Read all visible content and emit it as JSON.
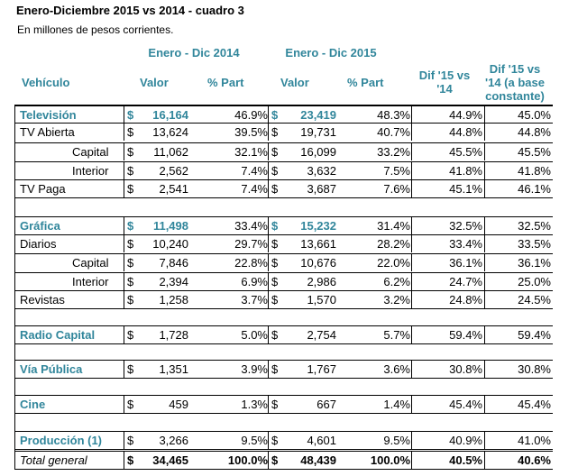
{
  "title": "Enero-Diciembre 2015 vs 2014 - cuadro 3",
  "subtitle": "En millones de pesos corrientes.",
  "header": {
    "group_2014": "Enero - Dic 2014",
    "group_2015": "Enero - Dic 2015",
    "vehiculo": "Vehículo",
    "valor": "Valor",
    "part": "% Part",
    "dif_line1": "Dif '15 vs",
    "dif_line2": "'14",
    "dif_cte_line1": "Dif '15 vs",
    "dif_cte_line2": "'14 (a base",
    "dif_cte_line3": "constante)"
  },
  "currency": "$",
  "rows": [
    {
      "label": "Televisión",
      "v14": "16,164",
      "p14": "46.9%",
      "v15": "23,419",
      "p15": "48.3%",
      "dif": "44.9%",
      "difc": "45.0%"
    },
    {
      "label": "TV Abierta",
      "v14": "13,624",
      "p14": "39.5%",
      "v15": "19,731",
      "p15": "40.7%",
      "dif": "44.8%",
      "difc": "44.8%"
    },
    {
      "label": "Capital",
      "v14": "11,062",
      "p14": "32.1%",
      "v15": "16,099",
      "p15": "33.2%",
      "dif": "45.5%",
      "difc": "45.5%"
    },
    {
      "label": "Interior",
      "v14": "2,562",
      "p14": "7.4%",
      "v15": "3,632",
      "p15": "7.5%",
      "dif": "41.8%",
      "difc": "41.8%"
    },
    {
      "label": "TV Paga",
      "v14": "2,541",
      "p14": "7.4%",
      "v15": "3,687",
      "p15": "7.6%",
      "dif": "45.1%",
      "difc": "46.1%"
    },
    {
      "label": "Gráfica",
      "v14": "11,498",
      "p14": "33.4%",
      "v15": "15,232",
      "p15": "31.4%",
      "dif": "32.5%",
      "difc": "32.5%"
    },
    {
      "label": "Diarios",
      "v14": "10,240",
      "p14": "29.7%",
      "v15": "13,661",
      "p15": "28.2%",
      "dif": "33.4%",
      "difc": "33.5%"
    },
    {
      "label": "Capital",
      "v14": "7,846",
      "p14": "22.8%",
      "v15": "10,676",
      "p15": "22.0%",
      "dif": "36.1%",
      "difc": "36.1%"
    },
    {
      "label": "Interior",
      "v14": "2,394",
      "p14": "6.9%",
      "v15": "2,986",
      "p15": "6.2%",
      "dif": "24.7%",
      "difc": "25.0%"
    },
    {
      "label": "Revistas",
      "v14": "1,258",
      "p14": "3.7%",
      "v15": "1,570",
      "p15": "3.2%",
      "dif": "24.8%",
      "difc": "24.5%"
    },
    {
      "label": "Radio Capital",
      "v14": "1,728",
      "p14": "5.0%",
      "v15": "2,754",
      "p15": "5.7%",
      "dif": "59.4%",
      "difc": "59.4%"
    },
    {
      "label": "Vía Pública",
      "v14": "1,351",
      "p14": "3.9%",
      "v15": "1,767",
      "p15": "3.6%",
      "dif": "30.8%",
      "difc": "30.8%"
    },
    {
      "label": "Cine",
      "v14": "459",
      "p14": "1.3%",
      "v15": "667",
      "p15": "1.4%",
      "dif": "45.4%",
      "difc": "45.4%"
    },
    {
      "label": "Producción (1)",
      "v14": "3,266",
      "p14": "9.5%",
      "v15": "4,601",
      "p15": "9.5%",
      "dif": "40.9%",
      "difc": "41.0%"
    },
    {
      "label": "Total general",
      "v14": "34,465",
      "p14": "100.0%",
      "v15": "48,439",
      "p15": "100.0%",
      "dif": "40.5%",
      "difc": "40.6%"
    }
  ]
}
